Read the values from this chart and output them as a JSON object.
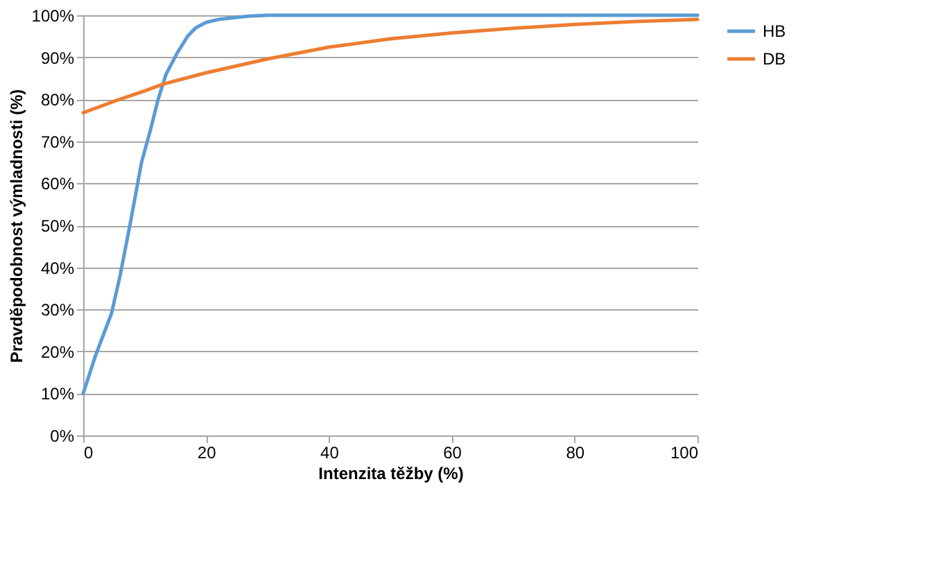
{
  "chart_data": {
    "type": "line",
    "xlabel": "Intenzita těžby (%)",
    "ylabel": "Pravděpodobnost výmladnosti (%)",
    "series": [
      {
        "name": "HB",
        "color": "#5b9bd5",
        "x": [
          0,
          2,
          4.6,
          6,
          7.6,
          9.5,
          11,
          12.2,
          13.5,
          15.3,
          17,
          18.3,
          20,
          22,
          25,
          27,
          30,
          40,
          60,
          80,
          100
        ],
        "values": [
          10,
          19,
          29,
          38,
          50,
          65,
          73,
          80,
          86,
          91,
          95,
          97,
          98.3,
          99,
          99.5,
          99.8,
          100,
          100,
          100,
          100,
          100
        ]
      },
      {
        "name": "DB",
        "color": "#ed7d31",
        "x": [
          0,
          5,
          10,
          13,
          20,
          30,
          40,
          50,
          60,
          70,
          80,
          90,
          100
        ],
        "values": [
          76.8,
          79.5,
          82,
          83.6,
          86.3,
          89.6,
          92.4,
          94.4,
          95.8,
          96.9,
          97.8,
          98.5,
          99
        ]
      }
    ],
    "xlim": [
      0,
      100
    ],
    "xticks": [
      0,
      20,
      40,
      60,
      80,
      100
    ],
    "ylim": [
      0,
      100
    ],
    "yticks": [
      {
        "value": 0,
        "label": "0%"
      },
      {
        "value": 10,
        "label": "10%"
      },
      {
        "value": 20,
        "label": "20%"
      },
      {
        "value": 30,
        "label": "30%"
      },
      {
        "value": 40,
        "label": "40%"
      },
      {
        "value": 50,
        "label": "50%"
      },
      {
        "value": 60,
        "label": "60%"
      },
      {
        "value": 70,
        "label": "70%"
      },
      {
        "value": 80,
        "label": "80%"
      },
      {
        "value": 90,
        "label": "90%"
      },
      {
        "value": 100,
        "label": "100%"
      }
    ],
    "grid": "y",
    "legend": "right",
    "marker": "none",
    "line_style": "solid"
  }
}
